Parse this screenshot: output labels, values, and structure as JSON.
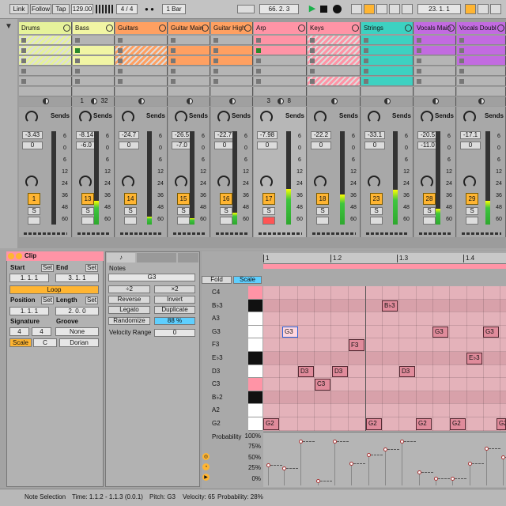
{
  "transport": {
    "link": "Link",
    "follow": "Follow",
    "tap": "Tap",
    "tempo": "129.00",
    "signature": "4 / 4",
    "quantize": "1 Bar",
    "position": "66. 2. 3",
    "loop_start": "23. 1. 1"
  },
  "tracks": [
    {
      "name": "Drums",
      "color": "#e6f29b",
      "volume": "-3.43",
      "pan": "0",
      "number": "1"
    },
    {
      "name": "Bass",
      "color": "#f1f5a4",
      "volume": "-8.14",
      "pan": "-6.0",
      "number": "13",
      "clip_start": "1",
      "clip_end": "32"
    },
    {
      "name": "Guitars",
      "color": "#ffa061",
      "volume": "-24.7",
      "pan": "0",
      "number": "14"
    },
    {
      "name": "Guitar Main",
      "color": "#ffa061",
      "volume": "-26.5",
      "pan": "-7.0",
      "number": "15"
    },
    {
      "name": "Guitar High",
      "color": "#ffa061",
      "volume": "-22.7",
      "pan": "0",
      "number": "16"
    },
    {
      "name": "Arp",
      "color": "#ff94a6",
      "volume": "-7.98",
      "pan": "0",
      "number": "17",
      "clip_start": "3",
      "clip_end": "8"
    },
    {
      "name": "Keys",
      "color": "#ff94a6",
      "volume": "-22.2",
      "pan": "0",
      "number": "18"
    },
    {
      "name": "Strings",
      "color": "#3dd1c1",
      "volume": "-33.1",
      "pan": "0",
      "number": "23"
    },
    {
      "name": "Vocals Main",
      "color": "#c26be0",
      "volume": "-20.5",
      "pan": "-11.0",
      "number": "28"
    },
    {
      "name": "Vocals Doubl",
      "color": "#c26be0",
      "volume": "-17.1",
      "pan": "0",
      "number": "29"
    }
  ],
  "sends_label": "Sends",
  "solo_label": "S",
  "meter_scale": [
    "6",
    "0",
    "6",
    "12",
    "24",
    "36",
    "48",
    "60"
  ],
  "clip": {
    "title": "Clip",
    "start": "Start",
    "end": "End",
    "set": "Set",
    "start_value": "1. 1. 1",
    "end_value": "3. 1. 1",
    "loop": "Loop",
    "position": "Position",
    "length": "Length",
    "position_value": "1. 1. 1",
    "length_value": "2. 0. 0",
    "signature": "Signature",
    "groove": "Groove",
    "sig_num": "4",
    "sig_den": "4",
    "groove_value": "None",
    "scale": "Scale",
    "root": "C",
    "mode": "Dorian"
  },
  "notes_panel": {
    "title": "Notes",
    "pitch": "G3",
    "half": "÷2",
    "double": "×2",
    "reverse": "Reverse",
    "invert": "Invert",
    "legato": "Legato",
    "duplicate": "Duplicate",
    "randomize": "Randomize",
    "randomize_value": "88 %",
    "velocity_range": "Velocity Range",
    "velocity_range_value": "0"
  },
  "piano_roll": {
    "fold": "Fold",
    "scale": "Scale",
    "ruler": [
      "1",
      "1.2",
      "1.3",
      "1.4"
    ],
    "keys": [
      "C4",
      "B♭3",
      "A3",
      "G3",
      "F3",
      "E♭3",
      "D3",
      "C3",
      "B♭2",
      "A2",
      "G2"
    ],
    "notes": [
      "G3",
      "B♭3",
      "F3",
      "D3",
      "D3",
      "D3",
      "C3",
      "G3",
      "G3",
      "E♭3",
      "G2",
      "G2",
      "G2",
      "G2",
      "G2"
    ]
  },
  "probability": {
    "label": "Probability",
    "ticks": [
      "100%",
      "75%",
      "50%",
      "25%",
      "0%"
    ]
  },
  "status": {
    "selection": "Note Selection",
    "time": "Time: 1.1.2 - 1.1.3 (0.0.1)",
    "pitch": "Pitch: G3",
    "velocity": "Velocity: 65",
    "probability": "Probability: 28%"
  }
}
